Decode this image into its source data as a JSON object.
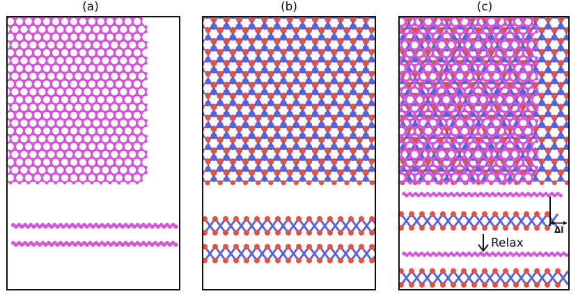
{
  "panels": [
    {
      "id": "a",
      "label": "(a)"
    },
    {
      "id": "b",
      "label": "(b)"
    },
    {
      "id": "c",
      "label": "(c)"
    }
  ],
  "annotations": {
    "relax": "Relax",
    "delta_l": "Δl"
  },
  "colors": {
    "phosphorene_atom": "#d357d8",
    "metal_atom": "#5b62d6",
    "chalcogen_atom": "#de5548",
    "bond_magenta": "#c84fcf",
    "frame": "#111111"
  }
}
